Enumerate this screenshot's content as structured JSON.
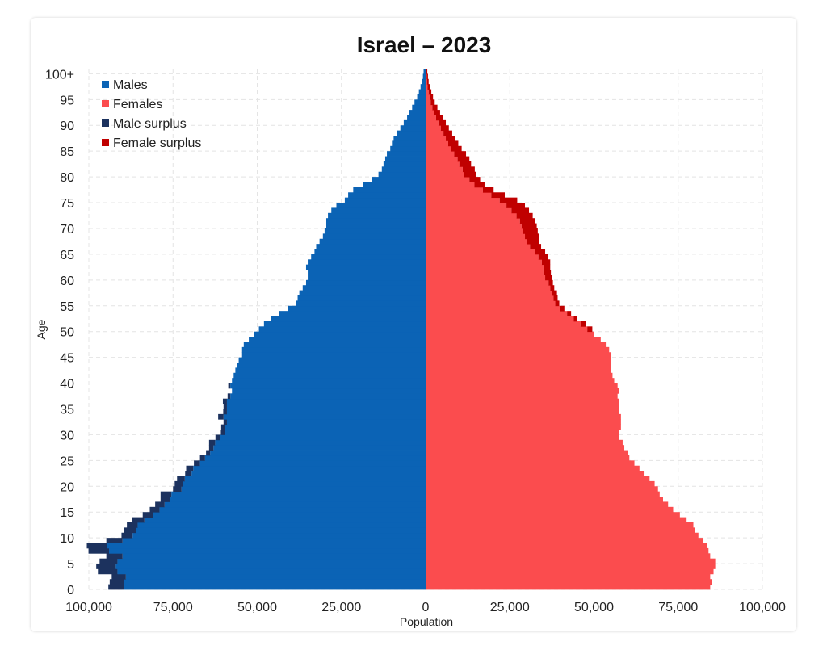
{
  "chart_data": {
    "type": "bar",
    "title": "Israel – 2023",
    "xlabel": "Population",
    "ylabel": "Age",
    "orientation": "horizontal",
    "layout": "population-pyramid",
    "xlim": [
      -100000,
      100000
    ],
    "ylim": [
      0,
      101
    ],
    "x_ticks": [
      "100,000",
      "75,000",
      "50,000",
      "25,000",
      "0",
      "25,000",
      "50,000",
      "75,000",
      "100,000"
    ],
    "y_ticks": [
      "0",
      "5",
      "10",
      "15",
      "20",
      "25",
      "30",
      "35",
      "40",
      "45",
      "50",
      "55",
      "60",
      "65",
      "70",
      "75",
      "80",
      "85",
      "90",
      "95",
      "100+"
    ],
    "grid": true,
    "legend_position": "top-left",
    "legend": [
      {
        "name": "Males",
        "color": "#0b63b5"
      },
      {
        "name": "Females",
        "color": "#fb4c4e"
      },
      {
        "name": "Male surplus",
        "color": "#1c325e"
      },
      {
        "name": "Female surplus",
        "color": "#c00000"
      }
    ],
    "ages": [
      "0",
      "1",
      "2",
      "3",
      "4",
      "5",
      "6",
      "7",
      "8",
      "9",
      "10",
      "11",
      "12",
      "13",
      "14",
      "15",
      "16",
      "17",
      "18",
      "19",
      "20",
      "21",
      "22",
      "23",
      "24",
      "25",
      "26",
      "27",
      "28",
      "29",
      "30",
      "31",
      "32",
      "33",
      "34",
      "35",
      "36",
      "37",
      "38",
      "39",
      "40",
      "41",
      "42",
      "43",
      "44",
      "45",
      "46",
      "47",
      "48",
      "49",
      "50",
      "51",
      "52",
      "53",
      "54",
      "55",
      "56",
      "57",
      "58",
      "59",
      "60",
      "61",
      "62",
      "63",
      "64",
      "65",
      "66",
      "67",
      "68",
      "69",
      "70",
      "71",
      "72",
      "73",
      "74",
      "75",
      "76",
      "77",
      "78",
      "79",
      "80",
      "81",
      "82",
      "83",
      "84",
      "85",
      "86",
      "87",
      "88",
      "89",
      "90",
      "91",
      "92",
      "93",
      "94",
      "95",
      "96",
      "97",
      "98",
      "99",
      "100+"
    ],
    "series": [
      {
        "name": "Males",
        "values": [
          89500,
          89500,
          89000,
          91500,
          92000,
          91500,
          90000,
          94000,
          94500,
          90000,
          87000,
          86000,
          85500,
          83500,
          81000,
          79000,
          77500,
          76000,
          75500,
          72500,
          72000,
          71500,
          69500,
          69000,
          67000,
          65500,
          64000,
          63000,
          62500,
          61000,
          59500,
          59500,
          59000,
          60000,
          59000,
          59000,
          59000,
          58000,
          57500,
          58000,
          57500,
          57000,
          56500,
          56000,
          55500,
          54500,
          54500,
          54000,
          52500,
          51000,
          49500,
          48000,
          46000,
          43500,
          41000,
          38500,
          38000,
          37500,
          36500,
          35500,
          35000,
          35000,
          35500,
          35000,
          34000,
          33000,
          32500,
          31500,
          30500,
          30000,
          29500,
          29500,
          29000,
          28000,
          26500,
          24000,
          23000,
          21500,
          18500,
          16000,
          14000,
          13000,
          12500,
          12000,
          11500,
          10500,
          10000,
          9500,
          8500,
          7500,
          6500,
          5500,
          4800,
          4000,
          3300,
          2500,
          2000,
          1500,
          1100,
          800,
          600
        ]
      },
      {
        "name": "Females",
        "values": [
          84500,
          85000,
          84500,
          85500,
          86000,
          86000,
          84500,
          84000,
          83500,
          82500,
          81000,
          80000,
          79500,
          77500,
          75500,
          73500,
          72000,
          70500,
          69500,
          69000,
          68000,
          66500,
          65000,
          63500,
          62000,
          60500,
          60000,
          59000,
          58500,
          57500,
          57500,
          58000,
          58000,
          58000,
          57500,
          57500,
          57500,
          57000,
          57500,
          57000,
          56000,
          55500,
          55000,
          55000,
          55000,
          55000,
          54500,
          53500,
          52000,
          50000,
          48000,
          46000,
          44000,
          42000,
          40000,
          38500,
          38000,
          37500,
          37000,
          36500,
          35500,
          35000,
          35000,
          34500,
          33500,
          32500,
          31000,
          30000,
          29500,
          29000,
          28500,
          28000,
          27000,
          25500,
          24000,
          22000,
          19500,
          17000,
          14500,
          13000,
          11500,
          11000,
          10000,
          9500,
          8500,
          7500,
          6700,
          6000,
          5300,
          4500,
          3800,
          3100,
          2500,
          2000,
          1500,
          1200,
          900,
          600,
          400,
          300,
          200
        ]
      },
      {
        "name": "Male surplus",
        "values": [
          4700,
          4300,
          4200,
          5800,
          5800,
          5300,
          4800,
          6100,
          6100,
          4800,
          3300,
          3500,
          3200,
          3600,
          3000,
          2900,
          2800,
          2700,
          3200,
          2500,
          2500,
          2300,
          1900,
          2100,
          1800,
          1500,
          1200,
          1300,
          1800,
          1400,
          1300,
          1200,
          1000,
          1600,
          1100,
          1000,
          1200,
          800,
          0,
          600,
          0,
          0,
          0,
          0,
          0,
          0,
          0,
          0,
          0,
          0,
          0,
          0,
          0,
          0,
          0,
          0,
          0,
          0,
          0,
          0,
          0,
          0,
          0,
          0,
          0,
          0,
          0,
          0,
          0,
          0,
          0,
          0,
          0,
          0,
          0,
          0,
          0,
          0,
          0,
          0,
          0,
          0,
          0,
          0,
          0,
          0,
          0,
          0,
          0,
          0,
          0,
          0,
          0,
          0,
          0,
          0,
          0,
          0,
          0,
          0,
          0
        ]
      },
      {
        "name": "Female surplus",
        "values": [
          0,
          0,
          0,
          0,
          0,
          0,
          0,
          0,
          0,
          0,
          0,
          0,
          0,
          0,
          0,
          0,
          0,
          0,
          0,
          0,
          0,
          0,
          0,
          0,
          0,
          0,
          0,
          0,
          0,
          0,
          0,
          0,
          0,
          0,
          0,
          0,
          0,
          0,
          0,
          0,
          0,
          0,
          0,
          0,
          0,
          0,
          0,
          0,
          0,
          0,
          1500,
          1500,
          1000,
          1200,
          1200,
          1200,
          1200,
          1500,
          1200,
          1300,
          2000,
          2200,
          2000,
          2500,
          2800,
          3000,
          3300,
          3800,
          4200,
          4300,
          4500,
          4600,
          4800,
          5200,
          5500,
          5200,
          4000,
          3200,
          3000,
          3200,
          3500,
          3600,
          3500,
          3500,
          3500,
          3200,
          3000,
          2700,
          2600,
          2400,
          2200,
          2000,
          1800,
          1500,
          1200,
          1000,
          800,
          600,
          500,
          400,
          300
        ]
      }
    ]
  }
}
